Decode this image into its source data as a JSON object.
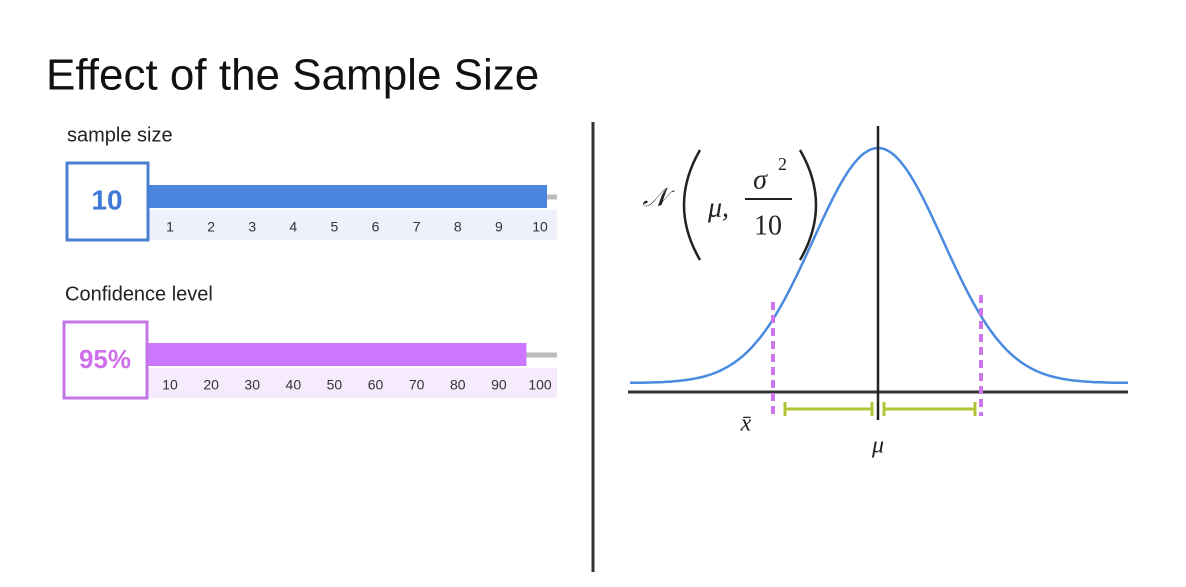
{
  "title": "Effect of the Sample Size",
  "sample_size": {
    "label": "sample size",
    "value": 10,
    "value_label": "10",
    "ticks": [
      1,
      2,
      3,
      4,
      5,
      6,
      7,
      8,
      9,
      10
    ]
  },
  "confidence": {
    "label": "Confidence level",
    "value": 95,
    "value_label": "95%",
    "ticks": [
      10,
      20,
      30,
      40,
      50,
      60,
      70,
      80,
      90,
      100
    ]
  },
  "formula": {
    "dist": "𝒩",
    "mean": "μ,",
    "variance": "σ",
    "power": "2",
    "denominator": "10"
  },
  "axis_labels": {
    "sample_mean": "x̄",
    "population_mean": "μ"
  }
}
